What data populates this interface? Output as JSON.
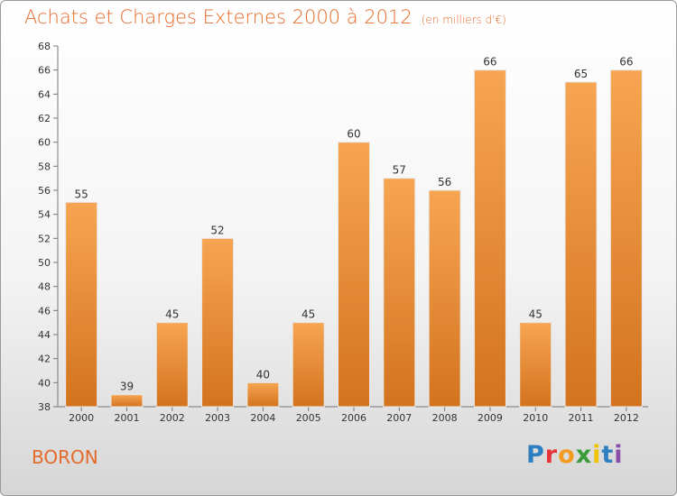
{
  "header": {
    "title": "Achats et Charges Externes 2000 à 2012",
    "unit": "(en milliers d'€)"
  },
  "footer": {
    "commune": "BORON",
    "logo": "Proxiti"
  },
  "colors": {
    "title": "#e46a2a",
    "bar_light": "#f7a552",
    "bar_dark": "#d3731e",
    "logo_letters": [
      "#2e7fc2",
      "#e6343a",
      "#f39a21",
      "#3a9b3a",
      "#f2c300",
      "#2e7fc2",
      "#8a4fa8"
    ]
  },
  "chart_data": {
    "type": "bar",
    "title": "Achats et Charges Externes 2000 à 2012",
    "subtitle": "(en milliers d'€)",
    "categories": [
      "2000",
      "2001",
      "2002",
      "2003",
      "2004",
      "2005",
      "2006",
      "2007",
      "2008",
      "2009",
      "2010",
      "2011",
      "2012"
    ],
    "values": [
      55,
      39,
      45,
      52,
      40,
      45,
      60,
      57,
      56,
      66,
      45,
      65,
      66
    ],
    "ylim": [
      38,
      68
    ],
    "yticks": [
      38,
      40,
      42,
      44,
      46,
      48,
      50,
      52,
      54,
      56,
      58,
      60,
      62,
      64,
      66,
      68
    ],
    "grid": false,
    "legend": "none",
    "data_labels": true
  }
}
